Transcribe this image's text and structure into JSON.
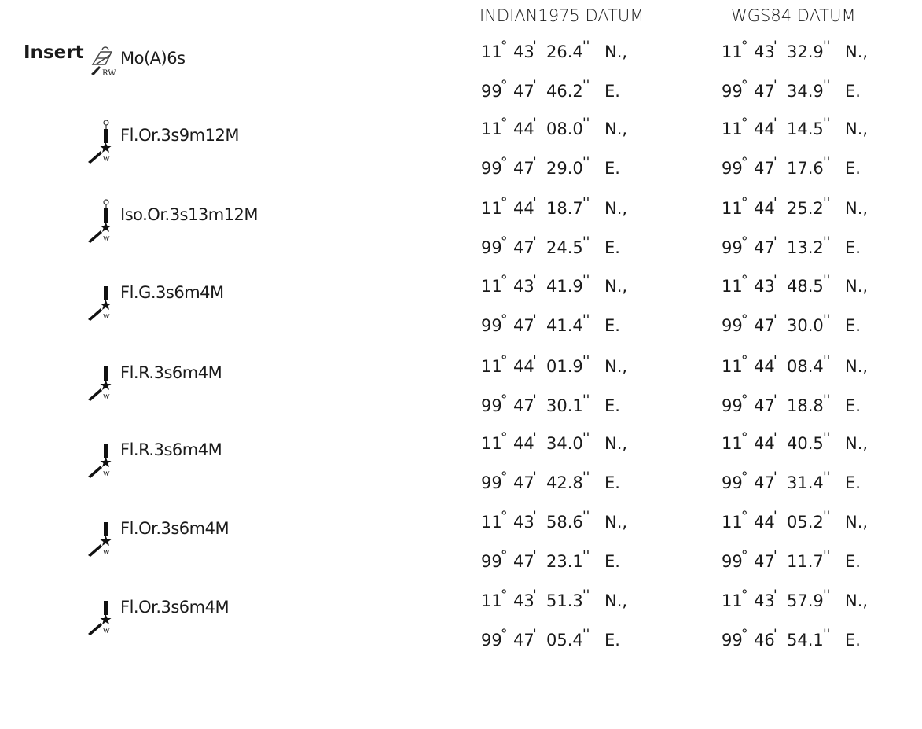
{
  "header": {
    "indian_datum": "INDIAN1975 DATUM",
    "wgs84_datum": "WGS84 DATUM"
  },
  "section_label": "Insert",
  "symbols": {
    "deg": "°",
    "min": "'",
    "sec": "''"
  },
  "entries": [
    {
      "icon": "mooring-buoy-rw-icon",
      "name": "Mo(A)6s",
      "indian": {
        "lat": [
          "11",
          "43",
          "26.4",
          "N.,"
        ],
        "lon": [
          "99",
          "47",
          "46.2",
          "E."
        ]
      },
      "wgs84": {
        "lat": [
          "11",
          "43",
          "32.9",
          "N.,"
        ],
        "lon": [
          "99",
          "47",
          "34.9",
          "E."
        ]
      }
    },
    {
      "icon": "light-beacon-topmark-icon",
      "name": "Fl.Or.3s9m12M",
      "indian": {
        "lat": [
          "11",
          "44",
          "08.0",
          "N.,"
        ],
        "lon": [
          "99",
          "47",
          "29.0",
          "E."
        ]
      },
      "wgs84": {
        "lat": [
          "11",
          "44",
          "14.5",
          "N.,"
        ],
        "lon": [
          "99",
          "47",
          "17.6",
          "E."
        ]
      }
    },
    {
      "icon": "light-beacon-topmark-icon",
      "name": "Iso.Or.3s13m12M",
      "indian": {
        "lat": [
          "11",
          "44",
          "18.7",
          "N.,"
        ],
        "lon": [
          "99",
          "47",
          "24.5",
          "E."
        ]
      },
      "wgs84": {
        "lat": [
          "11",
          "44",
          "25.2",
          "N.,"
        ],
        "lon": [
          "99",
          "47",
          "13.2",
          "E."
        ]
      }
    },
    {
      "icon": "light-beacon-icon",
      "name": "Fl.G.3s6m4M",
      "indian": {
        "lat": [
          "11",
          "43",
          "41.9",
          "N.,"
        ],
        "lon": [
          "99",
          "47",
          "41.4",
          "E."
        ]
      },
      "wgs84": {
        "lat": [
          "11",
          "43",
          "48.5",
          "N.,"
        ],
        "lon": [
          "99",
          "47",
          "30.0",
          "E."
        ]
      }
    },
    {
      "icon": "light-beacon-icon",
      "name": "Fl.R.3s6m4M",
      "indian": {
        "lat": [
          "11",
          "44",
          "01.9",
          "N.,"
        ],
        "lon": [
          "99",
          "47",
          "30.1",
          "E."
        ]
      },
      "wgs84": {
        "lat": [
          "11",
          "44",
          "08.4",
          "N.,"
        ],
        "lon": [
          "99",
          "47",
          "18.8",
          "E."
        ]
      }
    },
    {
      "icon": "light-beacon-icon",
      "name": "Fl.R.3s6m4M",
      "indian": {
        "lat": [
          "11",
          "44",
          "34.0",
          "N.,"
        ],
        "lon": [
          "99",
          "47",
          "42.8",
          "E."
        ]
      },
      "wgs84": {
        "lat": [
          "11",
          "44",
          "40.5",
          "N.,"
        ],
        "lon": [
          "99",
          "47",
          "31.4",
          "E."
        ]
      }
    },
    {
      "icon": "light-beacon-icon",
      "name": "Fl.Or.3s6m4M",
      "indian": {
        "lat": [
          "11",
          "43",
          "58.6",
          "N.,"
        ],
        "lon": [
          "99",
          "47",
          "23.1",
          "E."
        ]
      },
      "wgs84": {
        "lat": [
          "11",
          "44",
          "05.2",
          "N.,"
        ],
        "lon": [
          "99",
          "47",
          "11.7",
          "E."
        ]
      }
    },
    {
      "icon": "light-beacon-icon",
      "name": "Fl.Or.3s6m4M",
      "indian": {
        "lat": [
          "11",
          "43",
          "51.3",
          "N.,"
        ],
        "lon": [
          "99",
          "47",
          "05.4",
          "E."
        ]
      },
      "wgs84": {
        "lat": [
          "11",
          "43",
          "57.9",
          "N.,"
        ],
        "lon": [
          "99",
          "46",
          "54.1",
          "E."
        ]
      }
    }
  ]
}
